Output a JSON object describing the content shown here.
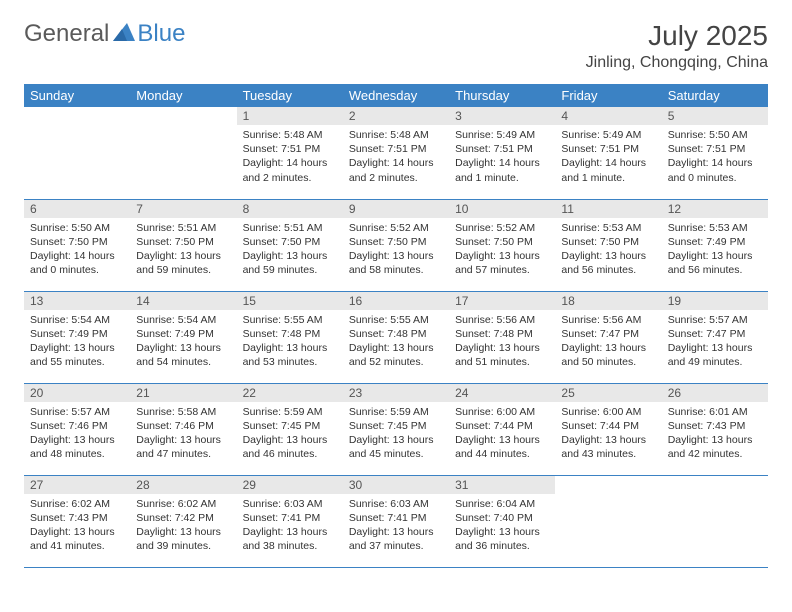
{
  "logo": {
    "general": "General",
    "blue": "Blue"
  },
  "title": "July 2025",
  "location": "Jinling, Chongqing, China",
  "colors": {
    "header_bg": "#3b82c4",
    "header_text": "#ffffff",
    "daynum_bg": "#e8e8e8",
    "border": "#3b82c4",
    "logo_gray": "#5a5a5a",
    "logo_blue": "#3b82c4"
  },
  "weekdays": [
    "Sunday",
    "Monday",
    "Tuesday",
    "Wednesday",
    "Thursday",
    "Friday",
    "Saturday"
  ],
  "weeks": [
    [
      null,
      null,
      {
        "n": "1",
        "sr": "Sunrise: 5:48 AM",
        "ss": "Sunset: 7:51 PM",
        "dl": "Daylight: 14 hours and 2 minutes."
      },
      {
        "n": "2",
        "sr": "Sunrise: 5:48 AM",
        "ss": "Sunset: 7:51 PM",
        "dl": "Daylight: 14 hours and 2 minutes."
      },
      {
        "n": "3",
        "sr": "Sunrise: 5:49 AM",
        "ss": "Sunset: 7:51 PM",
        "dl": "Daylight: 14 hours and 1 minute."
      },
      {
        "n": "4",
        "sr": "Sunrise: 5:49 AM",
        "ss": "Sunset: 7:51 PM",
        "dl": "Daylight: 14 hours and 1 minute."
      },
      {
        "n": "5",
        "sr": "Sunrise: 5:50 AM",
        "ss": "Sunset: 7:51 PM",
        "dl": "Daylight: 14 hours and 0 minutes."
      }
    ],
    [
      {
        "n": "6",
        "sr": "Sunrise: 5:50 AM",
        "ss": "Sunset: 7:50 PM",
        "dl": "Daylight: 14 hours and 0 minutes."
      },
      {
        "n": "7",
        "sr": "Sunrise: 5:51 AM",
        "ss": "Sunset: 7:50 PM",
        "dl": "Daylight: 13 hours and 59 minutes."
      },
      {
        "n": "8",
        "sr": "Sunrise: 5:51 AM",
        "ss": "Sunset: 7:50 PM",
        "dl": "Daylight: 13 hours and 59 minutes."
      },
      {
        "n": "9",
        "sr": "Sunrise: 5:52 AM",
        "ss": "Sunset: 7:50 PM",
        "dl": "Daylight: 13 hours and 58 minutes."
      },
      {
        "n": "10",
        "sr": "Sunrise: 5:52 AM",
        "ss": "Sunset: 7:50 PM",
        "dl": "Daylight: 13 hours and 57 minutes."
      },
      {
        "n": "11",
        "sr": "Sunrise: 5:53 AM",
        "ss": "Sunset: 7:50 PM",
        "dl": "Daylight: 13 hours and 56 minutes."
      },
      {
        "n": "12",
        "sr": "Sunrise: 5:53 AM",
        "ss": "Sunset: 7:49 PM",
        "dl": "Daylight: 13 hours and 56 minutes."
      }
    ],
    [
      {
        "n": "13",
        "sr": "Sunrise: 5:54 AM",
        "ss": "Sunset: 7:49 PM",
        "dl": "Daylight: 13 hours and 55 minutes."
      },
      {
        "n": "14",
        "sr": "Sunrise: 5:54 AM",
        "ss": "Sunset: 7:49 PM",
        "dl": "Daylight: 13 hours and 54 minutes."
      },
      {
        "n": "15",
        "sr": "Sunrise: 5:55 AM",
        "ss": "Sunset: 7:48 PM",
        "dl": "Daylight: 13 hours and 53 minutes."
      },
      {
        "n": "16",
        "sr": "Sunrise: 5:55 AM",
        "ss": "Sunset: 7:48 PM",
        "dl": "Daylight: 13 hours and 52 minutes."
      },
      {
        "n": "17",
        "sr": "Sunrise: 5:56 AM",
        "ss": "Sunset: 7:48 PM",
        "dl": "Daylight: 13 hours and 51 minutes."
      },
      {
        "n": "18",
        "sr": "Sunrise: 5:56 AM",
        "ss": "Sunset: 7:47 PM",
        "dl": "Daylight: 13 hours and 50 minutes."
      },
      {
        "n": "19",
        "sr": "Sunrise: 5:57 AM",
        "ss": "Sunset: 7:47 PM",
        "dl": "Daylight: 13 hours and 49 minutes."
      }
    ],
    [
      {
        "n": "20",
        "sr": "Sunrise: 5:57 AM",
        "ss": "Sunset: 7:46 PM",
        "dl": "Daylight: 13 hours and 48 minutes."
      },
      {
        "n": "21",
        "sr": "Sunrise: 5:58 AM",
        "ss": "Sunset: 7:46 PM",
        "dl": "Daylight: 13 hours and 47 minutes."
      },
      {
        "n": "22",
        "sr": "Sunrise: 5:59 AM",
        "ss": "Sunset: 7:45 PM",
        "dl": "Daylight: 13 hours and 46 minutes."
      },
      {
        "n": "23",
        "sr": "Sunrise: 5:59 AM",
        "ss": "Sunset: 7:45 PM",
        "dl": "Daylight: 13 hours and 45 minutes."
      },
      {
        "n": "24",
        "sr": "Sunrise: 6:00 AM",
        "ss": "Sunset: 7:44 PM",
        "dl": "Daylight: 13 hours and 44 minutes."
      },
      {
        "n": "25",
        "sr": "Sunrise: 6:00 AM",
        "ss": "Sunset: 7:44 PM",
        "dl": "Daylight: 13 hours and 43 minutes."
      },
      {
        "n": "26",
        "sr": "Sunrise: 6:01 AM",
        "ss": "Sunset: 7:43 PM",
        "dl": "Daylight: 13 hours and 42 minutes."
      }
    ],
    [
      {
        "n": "27",
        "sr": "Sunrise: 6:02 AM",
        "ss": "Sunset: 7:43 PM",
        "dl": "Daylight: 13 hours and 41 minutes."
      },
      {
        "n": "28",
        "sr": "Sunrise: 6:02 AM",
        "ss": "Sunset: 7:42 PM",
        "dl": "Daylight: 13 hours and 39 minutes."
      },
      {
        "n": "29",
        "sr": "Sunrise: 6:03 AM",
        "ss": "Sunset: 7:41 PM",
        "dl": "Daylight: 13 hours and 38 minutes."
      },
      {
        "n": "30",
        "sr": "Sunrise: 6:03 AM",
        "ss": "Sunset: 7:41 PM",
        "dl": "Daylight: 13 hours and 37 minutes."
      },
      {
        "n": "31",
        "sr": "Sunrise: 6:04 AM",
        "ss": "Sunset: 7:40 PM",
        "dl": "Daylight: 13 hours and 36 minutes."
      },
      null,
      null
    ]
  ]
}
